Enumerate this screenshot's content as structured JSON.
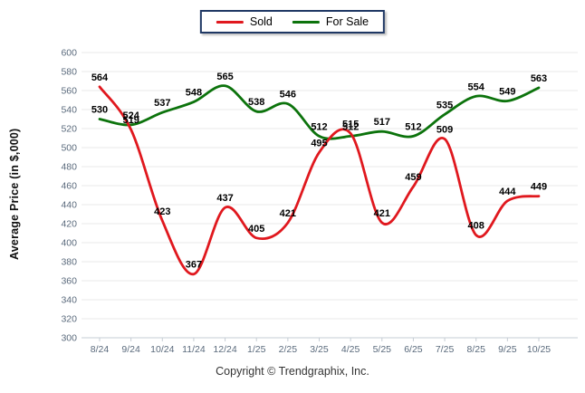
{
  "legend": {
    "items": [
      {
        "label": "Sold"
      },
      {
        "label": "For Sale"
      }
    ]
  },
  "footer": {
    "copyright": "Copyright © Trendgraphix, Inc."
  },
  "chart_data": {
    "type": "line",
    "title": "",
    "xlabel": "",
    "ylabel": "Average Price (in $,000)",
    "x": [
      "8/24",
      "9/24",
      "10/24",
      "11/24",
      "12/24",
      "1/25",
      "2/25",
      "3/25",
      "4/25",
      "5/25",
      "6/25",
      "7/25",
      "8/25",
      "9/25",
      "10/25"
    ],
    "series": [
      {
        "name": "Sold",
        "color": "#e0181e",
        "values": [
          564,
          519,
          423,
          367,
          437,
          405,
          421,
          495,
          515,
          421,
          459,
          509,
          408,
          444,
          449
        ]
      },
      {
        "name": "For Sale",
        "color": "#0c730c",
        "values": [
          530,
          524,
          537,
          548,
          565,
          538,
          546,
          512,
          512,
          517,
          512,
          535,
          554,
          549,
          563
        ]
      }
    ],
    "ylim": [
      300,
      600
    ],
    "ytick_step": 20,
    "grid": true,
    "smooth": true,
    "legend_position": "top-center",
    "data_label_color": "#000000",
    "tick_color": "#5a6a7c",
    "grid_color": "#e9e9e9",
    "axis_color": "#c6cdd4"
  }
}
